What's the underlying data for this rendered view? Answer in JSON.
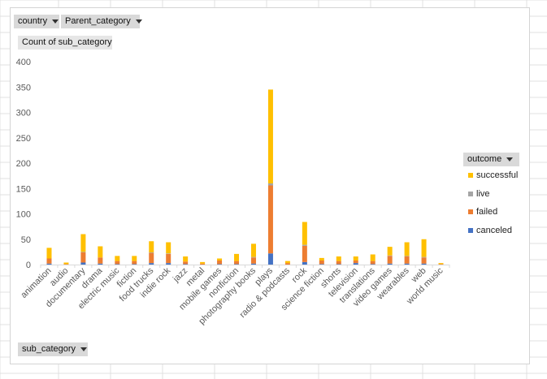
{
  "filters": {
    "country_label": "country",
    "parent_category_label": "Parent_category",
    "value_field_label": "Count of sub_category",
    "axis_field_label": "sub_category"
  },
  "legend": {
    "title": "outcome",
    "items": [
      {
        "name": "successful",
        "color": "#FFC000"
      },
      {
        "name": "live",
        "color": "#A5A5A5"
      },
      {
        "name": "failed",
        "color": "#ED7D31"
      },
      {
        "name": "canceled",
        "color": "#4472C4"
      }
    ]
  },
  "chart_data": {
    "type": "bar",
    "stacked": true,
    "title": "",
    "xlabel": "",
    "ylabel": "",
    "ylim": [
      0,
      400
    ],
    "yticks": [
      0,
      50,
      100,
      150,
      200,
      250,
      300,
      350,
      400
    ],
    "grid": false,
    "legend_position": "right",
    "categories": [
      "animation",
      "audio",
      "documentary",
      "drama",
      "electric music",
      "fiction",
      "food trucks",
      "indie rock",
      "jazz",
      "metal",
      "mobile games",
      "nonfiction",
      "photography books",
      "plays",
      "radio & podcasts",
      "rock",
      "science fiction",
      "shorts",
      "television",
      "translations",
      "video games",
      "wearables",
      "web",
      "world music"
    ],
    "series": [
      {
        "name": "canceled",
        "color": "#4472C4",
        "values": [
          2,
          0,
          4,
          2,
          1,
          1,
          3,
          3,
          1,
          0,
          1,
          1,
          2,
          22,
          0,
          5,
          1,
          1,
          3,
          1,
          2,
          2,
          2,
          0
        ]
      },
      {
        "name": "failed",
        "color": "#ED7D31",
        "values": [
          10,
          1,
          20,
          12,
          6,
          6,
          20,
          18,
          5,
          2,
          7,
          6,
          12,
          134,
          3,
          32,
          7,
          6,
          5,
          6,
          15,
          14,
          12,
          1
        ]
      },
      {
        "name": "live",
        "color": "#A5A5A5",
        "values": [
          0,
          0,
          1,
          0,
          0,
          0,
          1,
          1,
          0,
          0,
          0,
          0,
          1,
          4,
          0,
          2,
          0,
          0,
          0,
          0,
          1,
          1,
          1,
          0
        ]
      },
      {
        "name": "successful",
        "color": "#FFC000",
        "values": [
          21,
          3,
          35,
          22,
          10,
          10,
          22,
          22,
          10,
          3,
          4,
          14,
          26,
          185,
          4,
          45,
          5,
          9,
          8,
          13,
          17,
          27,
          35,
          2
        ]
      }
    ]
  }
}
